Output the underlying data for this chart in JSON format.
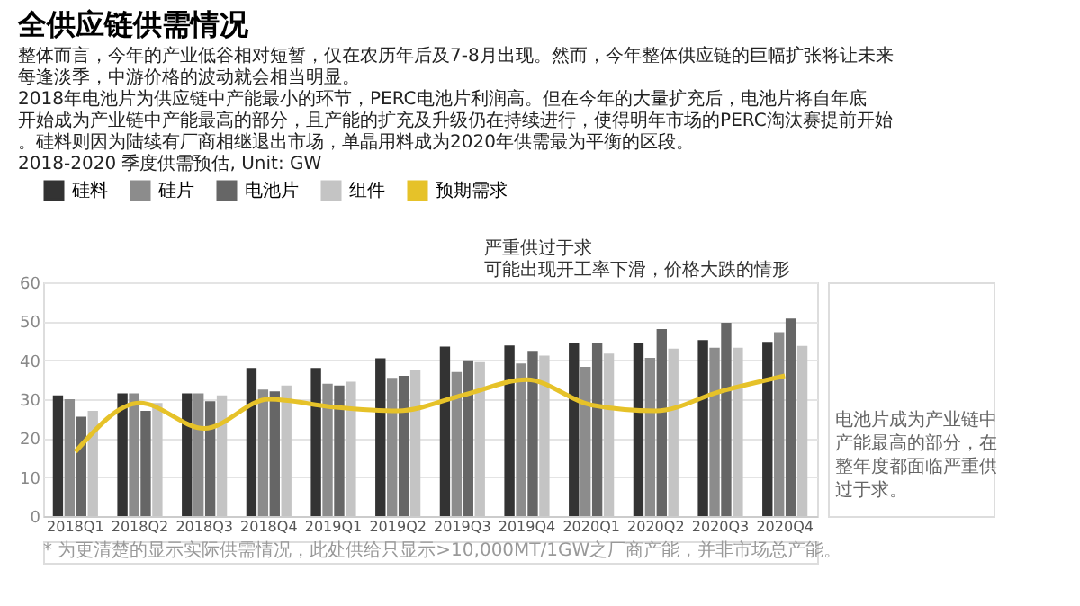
{
  "chart_data": {
    "type": "bar",
    "title": "全供应链供需情况",
    "subtitle": "2018-2020 季度供需预估, Unit: GW",
    "categories": [
      "2018Q1",
      "2018Q2",
      "2018Q3",
      "2018Q4",
      "2019Q1",
      "2019Q2",
      "2019Q3",
      "2019Q4",
      "2020Q1",
      "2020Q2",
      "2020Q3",
      "2020Q4"
    ],
    "series": [
      {
        "name": "硅料",
        "color": "#333333",
        "values": [
          31,
          31.5,
          31.5,
          38,
          38,
          40.5,
          43.5,
          43.8,
          44.3,
          44.3,
          45.2,
          44.7
        ]
      },
      {
        "name": "硅片",
        "color": "#8c8c8c",
        "values": [
          30,
          31.5,
          31.5,
          32.5,
          34,
          35.5,
          37,
          39.2,
          38.3,
          40.6,
          43.2,
          47.2
        ]
      },
      {
        "name": "电池片",
        "color": "#666666",
        "values": [
          25.5,
          27,
          29.5,
          32,
          33.5,
          36,
          40,
          42.4,
          44.3,
          48,
          49.6,
          50.7
        ]
      },
      {
        "name": "组件",
        "color": "#c4c4c4",
        "values": [
          27,
          29,
          31,
          33.5,
          34.5,
          37.5,
          39.5,
          41.2,
          41.7,
          43,
          43.2,
          43.7
        ]
      },
      {
        "name": "预期需求",
        "color": "#e6c229",
        "type": "line",
        "values": [
          16.5,
          29,
          22.5,
          30,
          28,
          27,
          31,
          35,
          28.5,
          27,
          32,
          36
        ]
      }
    ],
    "ylim": [
      0,
      60
    ],
    "yticks": [
      0,
      10,
      20,
      30,
      40,
      50,
      60
    ],
    "grid": "y",
    "legend": "top left",
    "annotations": [
      "整体而言，今年的产业低谷相对短暂，仅在农历年后及7-8月出现。然而，今年整体供应链的巨幅扩张将让未来每逢淡季，中游价格的波动就会相当明显。",
      "2018年电池片为供应链中产能最小的环节，PERC电池片利润高。但在今年的大量扩充后，电池片将自年底开始成为产业链中产能最高的部分，且产能的扩充及升级仍在持续进行，使得明年市场的PERC淘汰赛提前开始。硅料则因为陆续有厂商相继退出市场，单晶用料成为2020年供需最为平衡的区段。",
      "严重供过于求",
      "可能出现开工率下滑，价格大跌的情形",
      "电池片成为产业链中产能最高的部分，在整年度都面临严重供过于求。",
      "* 为更清楚的显示实际供需情况，此处供给只显示>10,000MT/1GW之厂商产能，并非市场总产能。"
    ]
  }
}
